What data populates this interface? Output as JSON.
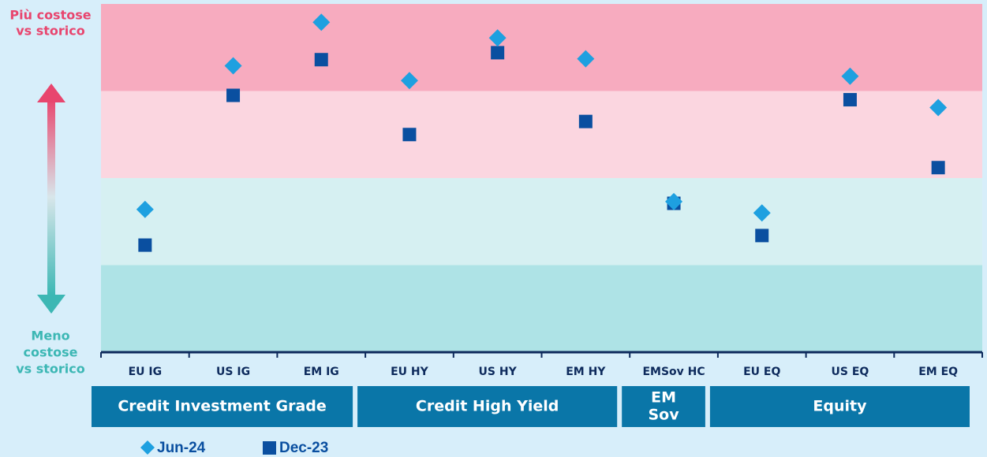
{
  "chart_data": {
    "type": "scatter",
    "top_label": [
      "Più costose",
      "vs storico"
    ],
    "bottom_label": [
      "Meno",
      "costose",
      "vs storico"
    ],
    "categories": [
      "EU IG",
      "US IG",
      "EM IG",
      "EU HY",
      "US HY",
      "EM HY",
      "EMSov HC",
      "EU EQ",
      "US EQ",
      "EM EQ"
    ],
    "groups": [
      {
        "label": [
          "Credit Investment Grade"
        ],
        "members": [
          0,
          1,
          2
        ]
      },
      {
        "label": [
          "Credit  High Yield"
        ],
        "members": [
          3,
          4,
          5
        ]
      },
      {
        "label": [
          "EM",
          "Sov"
        ],
        "members": [
          6
        ]
      },
      {
        "label": [
          "Equity"
        ],
        "members": [
          7,
          8,
          9
        ]
      }
    ],
    "ylim": [
      0,
      4
    ],
    "bands": [
      {
        "from": 3,
        "to": 4,
        "color": "#f7abbf"
      },
      {
        "from": 2,
        "to": 3,
        "color": "#fbd6e0"
      },
      {
        "from": 1,
        "to": 2,
        "color": "#d6f0f2"
      },
      {
        "from": 0,
        "to": 1,
        "color": "#aee3e6"
      }
    ],
    "series": [
      {
        "name": "Jun-24",
        "marker": "diamond",
        "color": "#1ea0e0",
        "values": [
          1.64,
          3.29,
          3.79,
          3.12,
          3.61,
          3.37,
          1.73,
          1.6,
          3.17,
          2.81
        ]
      },
      {
        "name": "Dec-23",
        "marker": "square",
        "color": "#0a4fa0",
        "values": [
          1.23,
          2.95,
          3.36,
          2.5,
          3.44,
          2.65,
          1.71,
          1.34,
          2.9,
          2.12
        ]
      }
    ]
  }
}
